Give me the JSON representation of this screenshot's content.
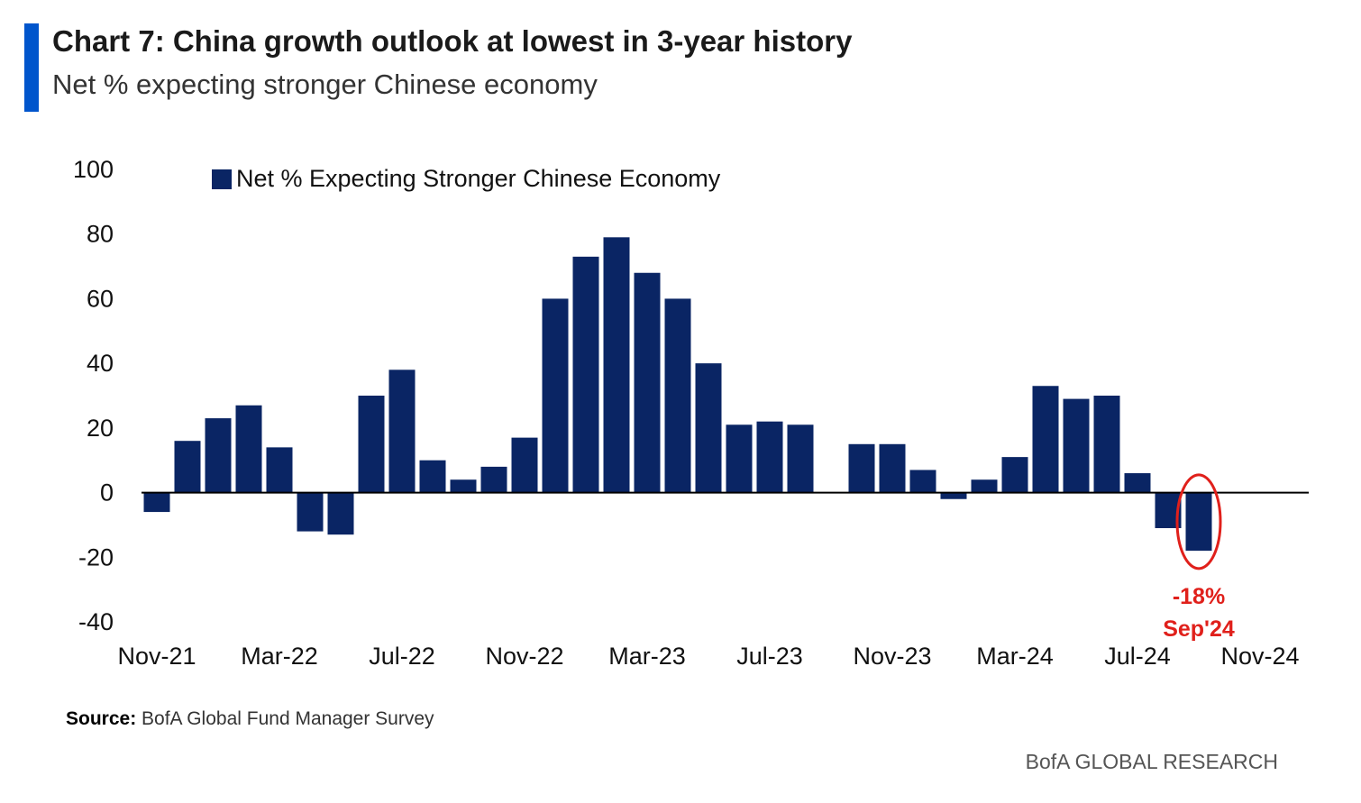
{
  "header": {
    "title": "Chart 7: China growth outlook at lowest in 3-year history",
    "subtitle": "Net % expecting stronger Chinese economy",
    "accent_color": "#0055cc"
  },
  "footer": {
    "source_label": "Source:",
    "source_text": " BofA Global Fund Manager Survey",
    "brand": "BofA GLOBAL RESEARCH"
  },
  "annotation": {
    "value_label": "-18%",
    "date_label": "Sep'24",
    "month": "Sep-24",
    "color": "#e0201b"
  },
  "chart_data": {
    "type": "bar",
    "legend": [
      "Net % Expecting Stronger Chinese Economy"
    ],
    "legend_position": "top-left",
    "ylim": [
      -40,
      100
    ],
    "yticks": [
      -40,
      -20,
      0,
      20,
      40,
      60,
      80,
      100
    ],
    "xtick_labels": [
      "Nov-21",
      "Mar-22",
      "Jul-22",
      "Nov-22",
      "Mar-23",
      "Jul-23",
      "Nov-23",
      "Mar-24",
      "Jul-24",
      "Nov-24"
    ],
    "grid": false,
    "bar_color": "#0a2564",
    "categories": [
      "Nov-21",
      "Dec-21",
      "Jan-22",
      "Feb-22",
      "Mar-22",
      "Apr-22",
      "May-22",
      "Jun-22",
      "Jul-22",
      "Aug-22",
      "Sep-22",
      "Oct-22",
      "Nov-22",
      "Dec-22",
      "Jan-23",
      "Feb-23",
      "Mar-23",
      "Apr-23",
      "May-23",
      "Jun-23",
      "Jul-23",
      "Aug-23",
      "Sep-23",
      "Oct-23",
      "Nov-23",
      "Dec-23",
      "Jan-24",
      "Feb-24",
      "Mar-24",
      "Apr-24",
      "May-24",
      "Jun-24",
      "Jul-24",
      "Aug-24",
      "Sep-24",
      "Oct-24",
      "Nov-24"
    ],
    "values": [
      -6,
      16,
      23,
      27,
      14,
      -12,
      -13,
      30,
      38,
      10,
      4,
      8,
      17,
      60,
      73,
      79,
      68,
      60,
      40,
      21,
      22,
      21,
      null,
      15,
      15,
      7,
      -2,
      4,
      11,
      33,
      29,
      30,
      6,
      -11,
      -18,
      null,
      null
    ]
  }
}
